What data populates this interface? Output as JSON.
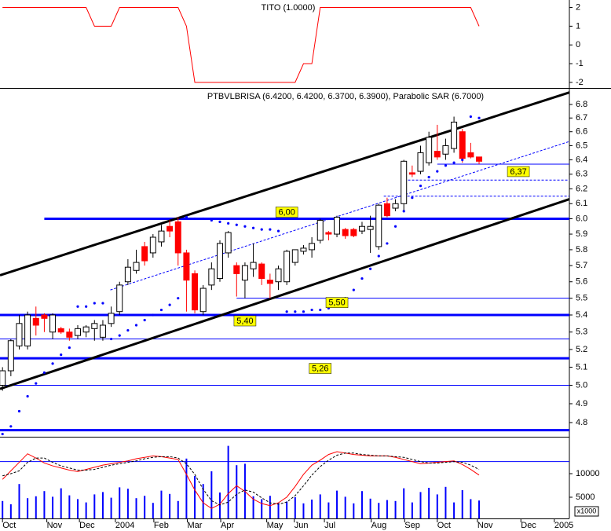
{
  "chart_data": [
    {
      "type": "line",
      "title": "TITO (1.0000)",
      "color": "#ff0000",
      "values": [
        2,
        2,
        2,
        2,
        2,
        2,
        2,
        2,
        2,
        2,
        2,
        1,
        1,
        1,
        2,
        2,
        2,
        2,
        2,
        2,
        2,
        2,
        1,
        -2,
        -2,
        -2,
        -2,
        -2,
        -2,
        -2,
        -2,
        -2,
        -2,
        -2,
        -2,
        -2,
        -1,
        -1,
        2,
        2,
        2,
        2,
        2,
        2,
        2,
        2,
        2,
        2,
        2,
        2,
        2,
        2,
        2,
        2,
        2,
        2,
        2,
        1
      ],
      "xlim": [
        -0.3,
        67.8
      ],
      "ylim": [
        -2.3,
        2.4
      ],
      "yticks": [
        2,
        1,
        0,
        -1,
        -2
      ]
    },
    {
      "type": "candlestick",
      "title": "PTBVLBRISA (6.4200, 6.4200, 6.3700, 6.3900), Parabolic SAR (6.7000)",
      "up_color": "#ffffff",
      "down_color": "#ff0000",
      "open": [
        5.0,
        5.08,
        5.22,
        5.22,
        5.38,
        5.4,
        5.3,
        5.32,
        5.3,
        5.28,
        5.3,
        5.32,
        5.27,
        5.35,
        5.42,
        5.6,
        5.67,
        5.82,
        5.78,
        5.85,
        5.95,
        5.98,
        5.78,
        5.65,
        5.42,
        5.58,
        5.62,
        5.78,
        5.7,
        5.61,
        5.68,
        5.71,
        5.61,
        5.6,
        5.6,
        5.72,
        5.79,
        5.8,
        5.86,
        5.91,
        5.9,
        5.93,
        5.93,
        5.92,
        5.93,
        5.82,
        6.1,
        6.07,
        6.1,
        6.31,
        6.32,
        6.38,
        6.46,
        6.44,
        6.48,
        6.6,
        6.45,
        6.42
      ],
      "high": [
        5.1,
        5.26,
        5.4,
        5.42,
        5.45,
        5.41,
        5.41,
        5.33,
        5.32,
        5.34,
        5.34,
        5.37,
        5.37,
        5.45,
        5.6,
        5.74,
        5.8,
        5.85,
        5.9,
        5.96,
        5.99,
        6.01,
        5.8,
        5.67,
        5.58,
        5.72,
        5.86,
        5.92,
        5.72,
        5.72,
        5.84,
        5.72,
        5.65,
        5.7,
        5.8,
        5.8,
        5.83,
        5.88,
        6.0,
        5.92,
        6.02,
        5.94,
        5.94,
        5.98,
        6.02,
        6.1,
        6.14,
        6.13,
        6.4,
        6.36,
        6.5,
        6.6,
        6.65,
        6.55,
        6.71,
        6.62,
        6.52,
        6.42
      ],
      "low": [
        4.97,
        5.05,
        5.2,
        5.2,
        5.28,
        5.3,
        5.26,
        5.29,
        5.25,
        5.26,
        5.27,
        5.25,
        5.25,
        5.33,
        5.4,
        5.58,
        5.65,
        5.7,
        5.75,
        5.82,
        5.88,
        5.7,
        5.42,
        5.41,
        5.4,
        5.55,
        5.6,
        5.75,
        5.51,
        5.5,
        5.63,
        5.58,
        5.5,
        5.55,
        5.58,
        5.7,
        5.77,
        5.75,
        5.84,
        5.86,
        5.88,
        5.87,
        5.88,
        5.9,
        5.78,
        5.8,
        6.01,
        6.05,
        6.05,
        6.28,
        6.3,
        6.36,
        6.4,
        6.4,
        6.45,
        6.38,
        6.41,
        6.37
      ],
      "close": [
        5.08,
        5.25,
        5.35,
        5.4,
        5.34,
        5.38,
        5.4,
        5.3,
        5.27,
        5.32,
        5.33,
        5.35,
        5.34,
        5.41,
        5.58,
        5.69,
        5.72,
        5.73,
        5.88,
        5.92,
        5.92,
        5.78,
        5.61,
        5.43,
        5.56,
        5.68,
        5.84,
        5.91,
        5.65,
        5.7,
        5.72,
        5.62,
        5.59,
        5.68,
        5.79,
        5.8,
        5.81,
        5.84,
        5.99,
        5.9,
        6.01,
        5.89,
        5.89,
        5.95,
        5.95,
        6.09,
        6.02,
        6.1,
        6.39,
        6.3,
        6.45,
        6.56,
        6.42,
        6.5,
        6.67,
        6.41,
        6.42,
        6.39
      ],
      "sar": [
        4.74,
        4.78,
        4.86,
        4.94,
        5.01,
        5.07,
        5.12,
        5.17,
        5.21,
        5.45,
        5.45,
        5.47,
        5.47,
        5.26,
        5.28,
        5.31,
        5.34,
        5.37,
        5.4,
        5.43,
        5.46,
        5.5,
        6.01,
        6.0,
        6.0,
        5.99,
        5.98,
        5.97,
        5.96,
        5.95,
        5.94,
        5.93,
        5.93,
        5.92,
        5.42,
        5.42,
        5.42,
        5.43,
        5.43,
        5.44,
        5.46,
        5.5,
        5.55,
        5.62,
        5.68,
        5.76,
        5.84,
        5.95,
        6.05,
        6.14,
        6.22,
        6.28,
        6.32,
        6.36,
        6.38,
        6.4,
        6.71,
        6.7
      ],
      "sar_color": "#0000ff",
      "log": true,
      "xlim": [
        -0.3,
        67.8
      ],
      "ylim": [
        4.726,
        6.912
      ],
      "yticks": [
        6.8,
        6.7,
        6.6,
        6.5,
        6.4,
        6.3,
        6.2,
        6.1,
        {
          "value": 6,
          "label": "6.0"
        },
        5.9,
        5.8,
        5.7,
        5.6,
        5.5,
        5.4,
        5.3,
        5.2,
        5.1,
        {
          "value": 5,
          "label": "5.0"
        },
        4.9,
        4.8
      ],
      "level_color": "#0000ff",
      "levels": [
        {
          "value": 6.0,
          "label": "6,00",
          "style": "thick",
          "from": 5
        },
        {
          "value": 5.5,
          "label": "5,50",
          "style": "thin",
          "from": 28
        },
        {
          "value": 5.4,
          "label": "5,40",
          "style": "thick"
        },
        {
          "value": 5.26,
          "label": "5,26",
          "style": "thin"
        },
        {
          "value": 5.15,
          "style": "thick"
        },
        {
          "value": 5.0,
          "style": "thin"
        },
        {
          "value": 4.76,
          "style": "thick"
        },
        {
          "value": 6.37,
          "label": "6,37",
          "style": "thin",
          "from": 52
        },
        {
          "value": 6.26,
          "style": "dashed",
          "from": 48.5
        },
        {
          "value": 6.15,
          "style": "dashed",
          "from": 45.6
        }
      ],
      "trendlines": [
        {
          "x": [
            -0.3,
            67.8
          ],
          "y": [
            5.64,
            6.89
          ],
          "style": "thick"
        },
        {
          "x": [
            -0.3,
            67.8
          ],
          "y": [
            4.98,
            6.13
          ],
          "style": "thick"
        },
        {
          "x": [
            12.9,
            67.8
          ],
          "y": [
            5.55,
            6.53
          ],
          "style": "dashed"
        }
      ]
    },
    {
      "type": "volume",
      "color": "#0000ff",
      "ylabel": "x1000",
      "values": [
        4200,
        3500,
        7800,
        4800,
        5200,
        6300,
        5100,
        6900,
        5400,
        4600,
        3900,
        5600,
        6100,
        4900,
        7100,
        6800,
        4800,
        5300,
        3800,
        6400,
        5700,
        4200,
        13200,
        9500,
        7800,
        10500,
        6000,
        15900,
        11800,
        12100,
        5200,
        4600,
        5300,
        3800,
        4100,
        5000,
        3700,
        4500,
        5600,
        3900,
        6400,
        5100,
        3700,
        6300,
        4700,
        3800,
        4400,
        4200,
        6900,
        3900,
        6100,
        7000,
        5600,
        7200,
        3900,
        6500,
        4600,
        4300
      ],
      "xlim": [
        -0.3,
        67.8
      ],
      "ylim": [
        500,
        17833
      ],
      "yticks": [
        10000,
        5000
      ],
      "y2lim": [
        0,
        115
      ],
      "stoch_level": 80,
      "stoch_level_color": "#0000ff",
      "series": [
        {
          "color": "#ff0000",
          "dash": false,
          "values": [
            55,
            67,
            79,
            91,
            85,
            78,
            74,
            71,
            68,
            66,
            69,
            72,
            75,
            77,
            79,
            81,
            84,
            86,
            88,
            87,
            85,
            83,
            62,
            40,
            22,
            14,
            20,
            35,
            46,
            38,
            27,
            21,
            18,
            22,
            30,
            45,
            62,
            75,
            82,
            90,
            94,
            92,
            90,
            89,
            88,
            88,
            88,
            86,
            83,
            80,
            77,
            78,
            79,
            80,
            81,
            76,
            69,
            61
          ]
        },
        {
          "color": "#000000",
          "dash": true,
          "values": [
            60,
            63,
            67,
            79,
            85,
            85,
            79,
            74,
            71,
            68,
            68,
            69,
            72,
            75,
            77,
            79,
            81,
            84,
            86,
            87,
            87,
            85,
            77,
            62,
            41,
            25,
            19,
            23,
            34,
            40,
            37,
            29,
            22,
            20,
            23,
            32,
            46,
            61,
            73,
            82,
            89,
            92,
            92,
            90,
            89,
            88,
            88,
            87,
            86,
            83,
            80,
            78,
            78,
            79,
            80,
            79,
            75,
            69
          ]
        }
      ],
      "xticks": [
        {
          "value": 0,
          "label": "Oct"
        },
        {
          "value": 5.3,
          "label": "Nov"
        },
        {
          "value": 9.2,
          "label": "Dec"
        },
        {
          "value": 13.5,
          "label": "2004"
        },
        {
          "value": 18.1,
          "label": "Feb"
        },
        {
          "value": 22.1,
          "label": "Mar"
        },
        {
          "value": 26.1,
          "label": "Apr"
        },
        {
          "value": 31.6,
          "label": "May"
        },
        {
          "value": 34.9,
          "label": "Jun"
        },
        {
          "value": 38.5,
          "label": "Jul"
        },
        {
          "value": 44.1,
          "label": "Aug"
        },
        {
          "value": 48.1,
          "label": "Sep"
        },
        {
          "value": 52.0,
          "label": "Oct"
        },
        {
          "value": 56.8,
          "label": "Nov"
        },
        {
          "value": 62.0,
          "label": "Dec"
        },
        {
          "value": 66.0,
          "label": "2005"
        }
      ]
    }
  ]
}
